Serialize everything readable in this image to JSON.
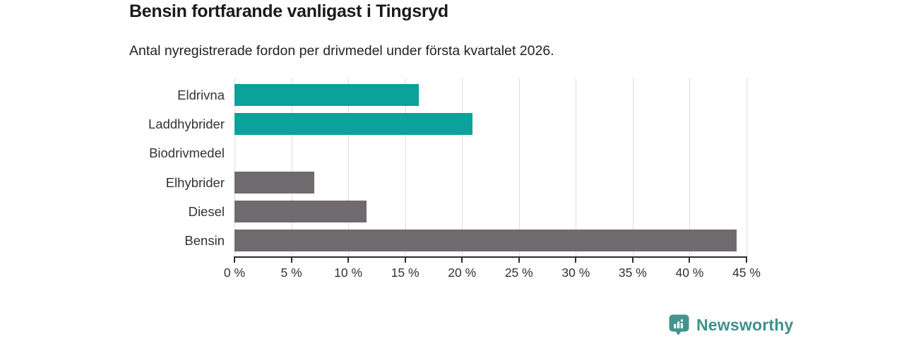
{
  "header": {
    "title": "Bensin fortfarande vanligast i Tingsryd",
    "subtitle": "Antal nyregistrerade fordon per drivmedel under första kvartalet 2026."
  },
  "chart_data": {
    "type": "bar",
    "orientation": "horizontal",
    "title": "Bensin fortfarande vanligast i Tingsryd",
    "subtitle": "Antal nyregistrerade fordon per drivmedel under första kvartalet 2026.",
    "categories": [
      "Eldrivna",
      "Laddhybrider",
      "Biodrivmedel",
      "Elhybrider",
      "Diesel",
      "Bensin"
    ],
    "values": [
      16.2,
      20.9,
      0,
      7.0,
      11.6,
      44.1
    ],
    "unit": "%",
    "bar_colors": [
      "#0aa29a",
      "#0aa29a",
      "#6e6a6e",
      "#6e6a6e",
      "#6e6a6e",
      "#6e6a6e"
    ],
    "xlim": [
      0,
      45
    ],
    "x_ticks": [
      0,
      5,
      10,
      15,
      20,
      25,
      30,
      35,
      40,
      45
    ],
    "x_tick_labels": [
      "0 %",
      "5 %",
      "10 %",
      "15 %",
      "20 %",
      "25 %",
      "30 %",
      "35 %",
      "40 %",
      "45 %"
    ],
    "grid": true,
    "legend": false
  },
  "footer": {
    "brand": "Newsworthy"
  },
  "colors": {
    "teal_bar": "#0aa29a",
    "gray_bar": "#6e6a6e",
    "grid": "#dcdcdc",
    "axis": "#2e2e2e",
    "text": "#333333",
    "brand": "#3f918b"
  }
}
